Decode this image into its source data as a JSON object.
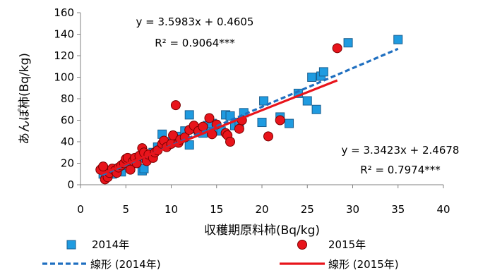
{
  "chart_data": {
    "type": "scatter",
    "xlabel": "収穫期原料柿(Bq/kg)",
    "ylabel": "あんぽ柿(Bq/kg)",
    "xlim": [
      0,
      40
    ],
    "ylim": [
      0,
      160
    ],
    "xticks": [
      0,
      5,
      10,
      15,
      20,
      25,
      30,
      35,
      40
    ],
    "yticks": [
      0,
      20,
      40,
      60,
      80,
      100,
      120,
      140,
      160
    ],
    "grid": false,
    "legend_position": "bottom",
    "series": [
      {
        "name": "2014年",
        "marker": "square",
        "color": "#1f9be0",
        "points": [
          [
            2.5,
            10
          ],
          [
            2.8,
            8
          ],
          [
            3.0,
            12
          ],
          [
            3.5,
            10
          ],
          [
            4.0,
            15
          ],
          [
            4.5,
            12
          ],
          [
            5.0,
            18
          ],
          [
            5.5,
            20
          ],
          [
            6.0,
            22
          ],
          [
            6.5,
            25
          ],
          [
            6.8,
            13
          ],
          [
            7.0,
            15
          ],
          [
            7.5,
            28
          ],
          [
            8.0,
            30
          ],
          [
            8.5,
            35
          ],
          [
            9.0,
            47
          ],
          [
            9.5,
            38
          ],
          [
            10.0,
            40
          ],
          [
            10.5,
            42
          ],
          [
            11.0,
            45
          ],
          [
            11.5,
            50
          ],
          [
            12.0,
            65
          ],
          [
            12.0,
            37
          ],
          [
            12.5,
            52
          ],
          [
            13.0,
            50
          ],
          [
            13.5,
            48
          ],
          [
            14.0,
            55
          ],
          [
            14.5,
            57
          ],
          [
            15.0,
            53
          ],
          [
            15.5,
            50
          ],
          [
            16.0,
            65
          ],
          [
            16.5,
            64
          ],
          [
            17.0,
            55
          ],
          [
            17.5,
            58
          ],
          [
            18.0,
            67
          ],
          [
            20.0,
            58
          ],
          [
            20.2,
            78
          ],
          [
            22.0,
            63
          ],
          [
            23.0,
            57
          ],
          [
            24.0,
            85
          ],
          [
            25.0,
            78
          ],
          [
            25.5,
            100
          ],
          [
            26.0,
            70
          ],
          [
            26.5,
            101
          ],
          [
            26.8,
            105
          ],
          [
            29.5,
            132
          ],
          [
            35.0,
            135
          ]
        ]
      },
      {
        "name": "2015年",
        "marker": "circle",
        "color": "#e8141b",
        "points": [
          [
            2.2,
            14
          ],
          [
            2.5,
            17
          ],
          [
            2.7,
            5
          ],
          [
            3.0,
            7
          ],
          [
            3.2,
            11
          ],
          [
            3.5,
            15
          ],
          [
            3.8,
            13
          ],
          [
            4.0,
            11
          ],
          [
            4.2,
            16
          ],
          [
            4.5,
            18
          ],
          [
            4.8,
            20
          ],
          [
            5.0,
            24
          ],
          [
            5.2,
            25
          ],
          [
            5.5,
            14
          ],
          [
            5.8,
            22
          ],
          [
            6.0,
            25
          ],
          [
            6.2,
            20
          ],
          [
            6.5,
            27
          ],
          [
            6.8,
            34
          ],
          [
            7.0,
            30
          ],
          [
            7.3,
            22
          ],
          [
            7.5,
            28
          ],
          [
            8.0,
            25
          ],
          [
            8.2,
            30
          ],
          [
            8.5,
            32
          ],
          [
            9.0,
            38
          ],
          [
            9.2,
            41
          ],
          [
            9.5,
            35
          ],
          [
            10.0,
            38
          ],
          [
            10.2,
            46
          ],
          [
            10.5,
            74
          ],
          [
            10.8,
            39
          ],
          [
            11.0,
            42
          ],
          [
            11.5,
            44
          ],
          [
            12.0,
            51
          ],
          [
            12.5,
            55
          ],
          [
            13.0,
            50
          ],
          [
            13.5,
            54
          ],
          [
            14.2,
            62
          ],
          [
            14.5,
            47
          ],
          [
            15.0,
            56
          ],
          [
            16.0,
            48
          ],
          [
            16.2,
            46
          ],
          [
            16.5,
            40
          ],
          [
            17.5,
            52
          ],
          [
            17.8,
            60
          ],
          [
            20.7,
            45
          ],
          [
            22.0,
            60
          ],
          [
            28.3,
            127
          ]
        ]
      }
    ],
    "trendlines": [
      {
        "name": "線形 (2014年)",
        "color": "#1f6fc0",
        "style": "dashed",
        "slope": 3.5983,
        "intercept": 0.4605,
        "x_range": [
          2.4,
          35
        ],
        "equation": "y = 3.5983x + 0.4605",
        "r2": "R² = 0.9064***"
      },
      {
        "name": "線形 (2015年)",
        "color": "#e8141b",
        "style": "solid",
        "slope": 3.3423,
        "intercept": 2.4678,
        "x_range": [
          2.2,
          28.3
        ],
        "equation": "y = 3.3423x + 2.4678",
        "r2": "R² = 0.7974***"
      }
    ]
  }
}
